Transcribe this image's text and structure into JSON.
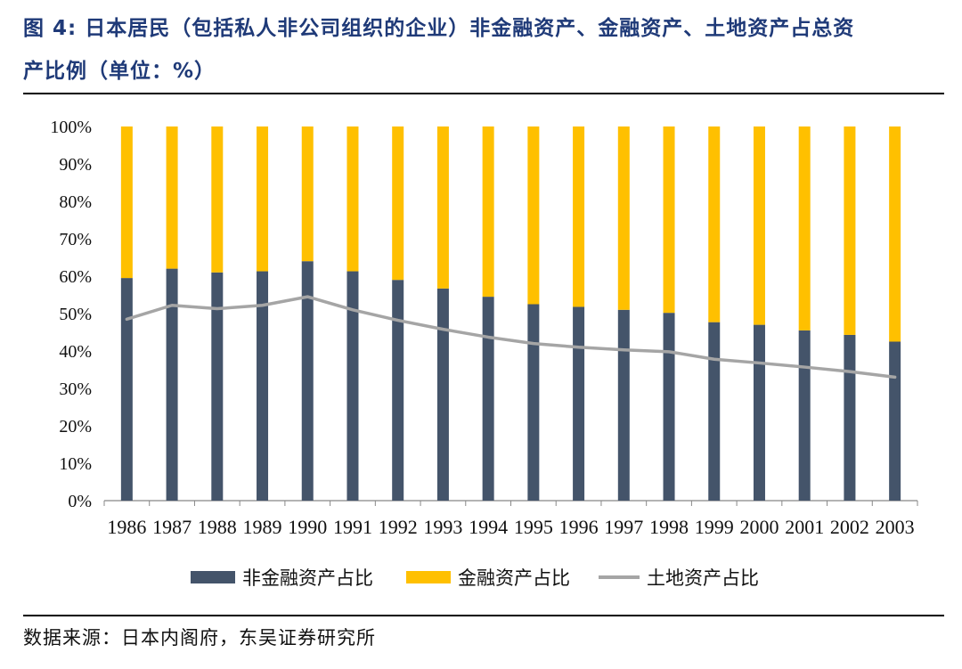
{
  "title": {
    "line1": "图 4:  日本居民（包括私人非公司组织的企业）非金融资产、金融资产、土地资产占总资",
    "line2": "产比例（单位：%）"
  },
  "source": "数据来源：日本内阁府，东吴证券研究所",
  "colors": {
    "nonfinancial": "#44546a",
    "financial": "#ffc000",
    "land": "#a5a5a5",
    "title": "#1f3a78"
  },
  "chart_data": {
    "type": "bar",
    "stacked": true,
    "categories": [
      "1986",
      "1987",
      "1988",
      "1989",
      "1990",
      "1991",
      "1992",
      "1993",
      "1994",
      "1995",
      "1996",
      "1997",
      "1998",
      "1999",
      "2000",
      "2001",
      "2002",
      "2003"
    ],
    "series": [
      {
        "name": "非金融资产占比",
        "type": "bar",
        "values": [
          59.5,
          62,
          61,
          61.3,
          64,
          61.3,
          59,
          56.7,
          54.5,
          52.5,
          51.8,
          51,
          50.2,
          47.7,
          47,
          45.5,
          44.3,
          42.5
        ]
      },
      {
        "name": "金融资产占比",
        "type": "bar",
        "values": [
          40.5,
          38,
          39,
          38.7,
          36,
          38.7,
          41,
          43.3,
          45.5,
          47.5,
          48.2,
          49,
          49.8,
          52.3,
          53,
          54.5,
          55.7,
          57.5
        ]
      },
      {
        "name": "土地资产占比",
        "type": "line",
        "values": [
          48.5,
          52.2,
          51.3,
          52.2,
          54.5,
          51,
          48.2,
          45.8,
          43.7,
          42,
          41,
          40.3,
          39.8,
          37.8,
          36.8,
          35.7,
          34.5,
          33
        ]
      }
    ],
    "yticks": [
      "0%",
      "10%",
      "20%",
      "30%",
      "40%",
      "50%",
      "60%",
      "70%",
      "80%",
      "90%",
      "100%"
    ],
    "ylim": [
      0,
      100
    ],
    "grid": false,
    "legend_position": "bottom"
  }
}
